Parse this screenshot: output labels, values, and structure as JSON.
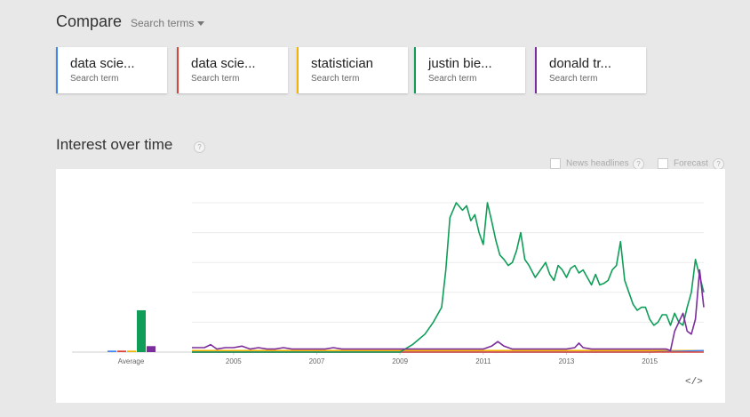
{
  "compare": {
    "title": "Compare",
    "dropdown_label": "Search terms"
  },
  "terms": [
    {
      "name": "data scie...",
      "sub": "Search term",
      "color": "#4285f4"
    },
    {
      "name": "data scie...",
      "sub": "Search term",
      "color": "#db4437"
    },
    {
      "name": "statistician",
      "sub": "Search term",
      "color": "#f4b400"
    },
    {
      "name": "justin bie...",
      "sub": "Search term",
      "color": "#0f9d58"
    },
    {
      "name": "donald tr...",
      "sub": "Search term",
      "color": "#7b2d9b"
    }
  ],
  "section": {
    "title": "Interest over time",
    "help": "?",
    "news_headlines": "News headlines",
    "forecast": "Forecast",
    "embed": "</>"
  },
  "chart_data": {
    "type": "line",
    "title": "",
    "xlabel": "",
    "ylabel": "",
    "ylim": [
      0,
      100
    ],
    "grid": true,
    "x_tick_labels": [
      "2005",
      "2007",
      "2009",
      "2011",
      "2013",
      "2015"
    ],
    "x_ticks_year": [
      2005,
      2007,
      2009,
      2011,
      2013,
      2015
    ],
    "xlim": [
      2004.0,
      2016.3
    ],
    "average_label": "Average",
    "averages": [
      {
        "name": "data scie...",
        "color": "#4285f4",
        "value": 1
      },
      {
        "name": "data scie...",
        "color": "#db4437",
        "value": 1
      },
      {
        "name": "statistician",
        "color": "#f4b400",
        "value": 1
      },
      {
        "name": "justin bie...",
        "color": "#0f9d58",
        "value": 28
      },
      {
        "name": "donald tr...",
        "color": "#7b2d9b",
        "value": 4
      }
    ],
    "series": [
      {
        "name": "statistician",
        "color": "#f4b400",
        "x": [
          2004.0,
          2016.3
        ],
        "y": [
          1,
          1
        ]
      },
      {
        "name": "data scie...",
        "color": "#4285f4",
        "x": [
          2004.0,
          2015.0,
          2016.3
        ],
        "y": [
          0,
          0,
          1
        ]
      },
      {
        "name": "data scie...",
        "color": "#db4437",
        "x": [
          2004.0,
          2016.3
        ],
        "y": [
          0,
          0
        ]
      },
      {
        "name": "justin bie...",
        "color": "#0f9d58",
        "x": [
          2004.0,
          2009.0,
          2009.3,
          2009.6,
          2009.8,
          2010.0,
          2010.1,
          2010.2,
          2010.35,
          2010.5,
          2010.6,
          2010.7,
          2010.8,
          2010.9,
          2011.0,
          2011.1,
          2011.2,
          2011.3,
          2011.4,
          2011.5,
          2011.6,
          2011.7,
          2011.8,
          2011.9,
          2012.0,
          2012.1,
          2012.25,
          2012.4,
          2012.5,
          2012.6,
          2012.7,
          2012.8,
          2012.9,
          2013.0,
          2013.1,
          2013.2,
          2013.3,
          2013.4,
          2013.5,
          2013.6,
          2013.7,
          2013.8,
          2013.9,
          2014.0,
          2014.1,
          2014.2,
          2014.3,
          2014.4,
          2014.5,
          2014.6,
          2014.7,
          2014.8,
          2014.9,
          2015.0,
          2015.1,
          2015.2,
          2015.3,
          2015.4,
          2015.5,
          2015.6,
          2015.7,
          2015.8,
          2015.9,
          2016.0,
          2016.1,
          2016.3
        ],
        "y": [
          0,
          0,
          5,
          12,
          20,
          30,
          55,
          90,
          100,
          95,
          98,
          88,
          92,
          80,
          72,
          100,
          88,
          75,
          65,
          62,
          58,
          60,
          68,
          80,
          62,
          58,
          50,
          56,
          60,
          52,
          48,
          58,
          55,
          50,
          56,
          58,
          53,
          55,
          50,
          45,
          52,
          45,
          46,
          48,
          55,
          58,
          74,
          48,
          40,
          32,
          28,
          30,
          30,
          22,
          18,
          20,
          25,
          25,
          18,
          26,
          20,
          18,
          30,
          40,
          62,
          40
        ]
      },
      {
        "name": "donald tr...",
        "color": "#7b2d9b",
        "x": [
          2004.0,
          2004.2,
          2004.3,
          2004.45,
          2004.6,
          2004.8,
          2005.0,
          2005.2,
          2005.4,
          2005.6,
          2005.8,
          2006.0,
          2006.2,
          2006.4,
          2006.6,
          2006.8,
          2007.0,
          2007.2,
          2007.4,
          2007.6,
          2007.8,
          2008.0,
          2008.5,
          2009.0,
          2009.5,
          2010.0,
          2010.5,
          2011.0,
          2011.2,
          2011.35,
          2011.5,
          2011.7,
          2012.0,
          2012.5,
          2013.0,
          2013.2,
          2013.3,
          2013.4,
          2013.6,
          2014.0,
          2014.5,
          2015.0,
          2015.2,
          2015.4,
          2015.5,
          2015.6,
          2015.7,
          2015.8,
          2015.9,
          2016.0,
          2016.1,
          2016.2,
          2016.3
        ],
        "y": [
          3,
          3,
          3,
          5,
          2,
          3,
          3,
          4,
          2,
          3,
          2,
          2,
          3,
          2,
          2,
          2,
          2,
          2,
          3,
          2,
          2,
          2,
          2,
          2,
          2,
          2,
          2,
          2,
          4,
          7,
          4,
          2,
          2,
          2,
          2,
          3,
          6,
          3,
          2,
          2,
          2,
          2,
          2,
          2,
          1,
          14,
          20,
          26,
          14,
          12,
          22,
          55,
          30
        ]
      }
    ]
  }
}
